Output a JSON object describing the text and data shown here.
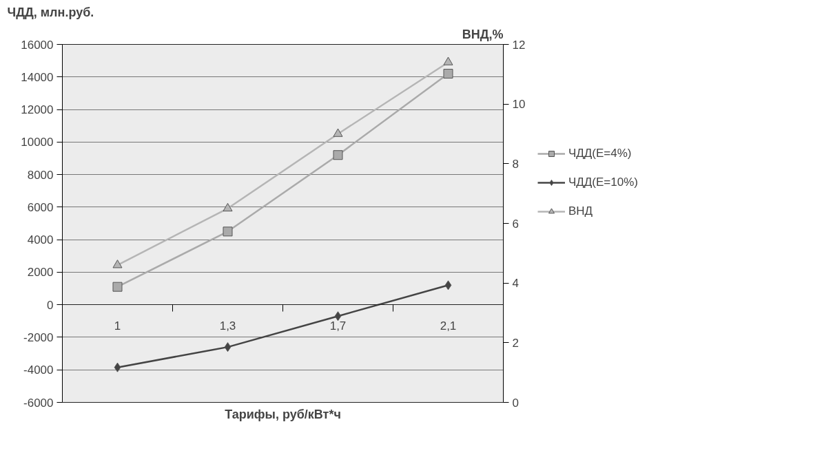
{
  "chart_data": {
    "type": "line",
    "categories": [
      "1",
      "1,3",
      "1,7",
      "2,1"
    ],
    "xlabel": "Тарифы, руб/кВт*ч",
    "ylabel": "ЧДД, млн.руб.",
    "y2label": "ВНД,%",
    "series": [
      {
        "name": "ЧДД(E=4%)",
        "color": "#aaaaaa",
        "marker": "square",
        "values": [
          1100,
          4500,
          9200,
          14200
        ]
      },
      {
        "name": "ЧДД(E=10%)",
        "color": "#444444",
        "marker": "diamond",
        "values": [
          -3850,
          -2600,
          -700,
          1200
        ]
      },
      {
        "name": "ВНД",
        "color": "#b5b5b5",
        "marker": "triangle",
        "axis": "y2",
        "values": [
          4.6,
          6.5,
          9.0,
          11.4
        ]
      }
    ],
    "ylim": [
      -6000,
      16000
    ],
    "yticks": [
      -6000,
      -4000,
      -2000,
      0,
      2000,
      4000,
      6000,
      8000,
      10000,
      12000,
      14000,
      16000
    ],
    "y2lim": [
      0,
      12
    ],
    "y2ticks": [
      0,
      2,
      4,
      6,
      8,
      10,
      12
    ],
    "grid": "y",
    "legend": "right"
  }
}
